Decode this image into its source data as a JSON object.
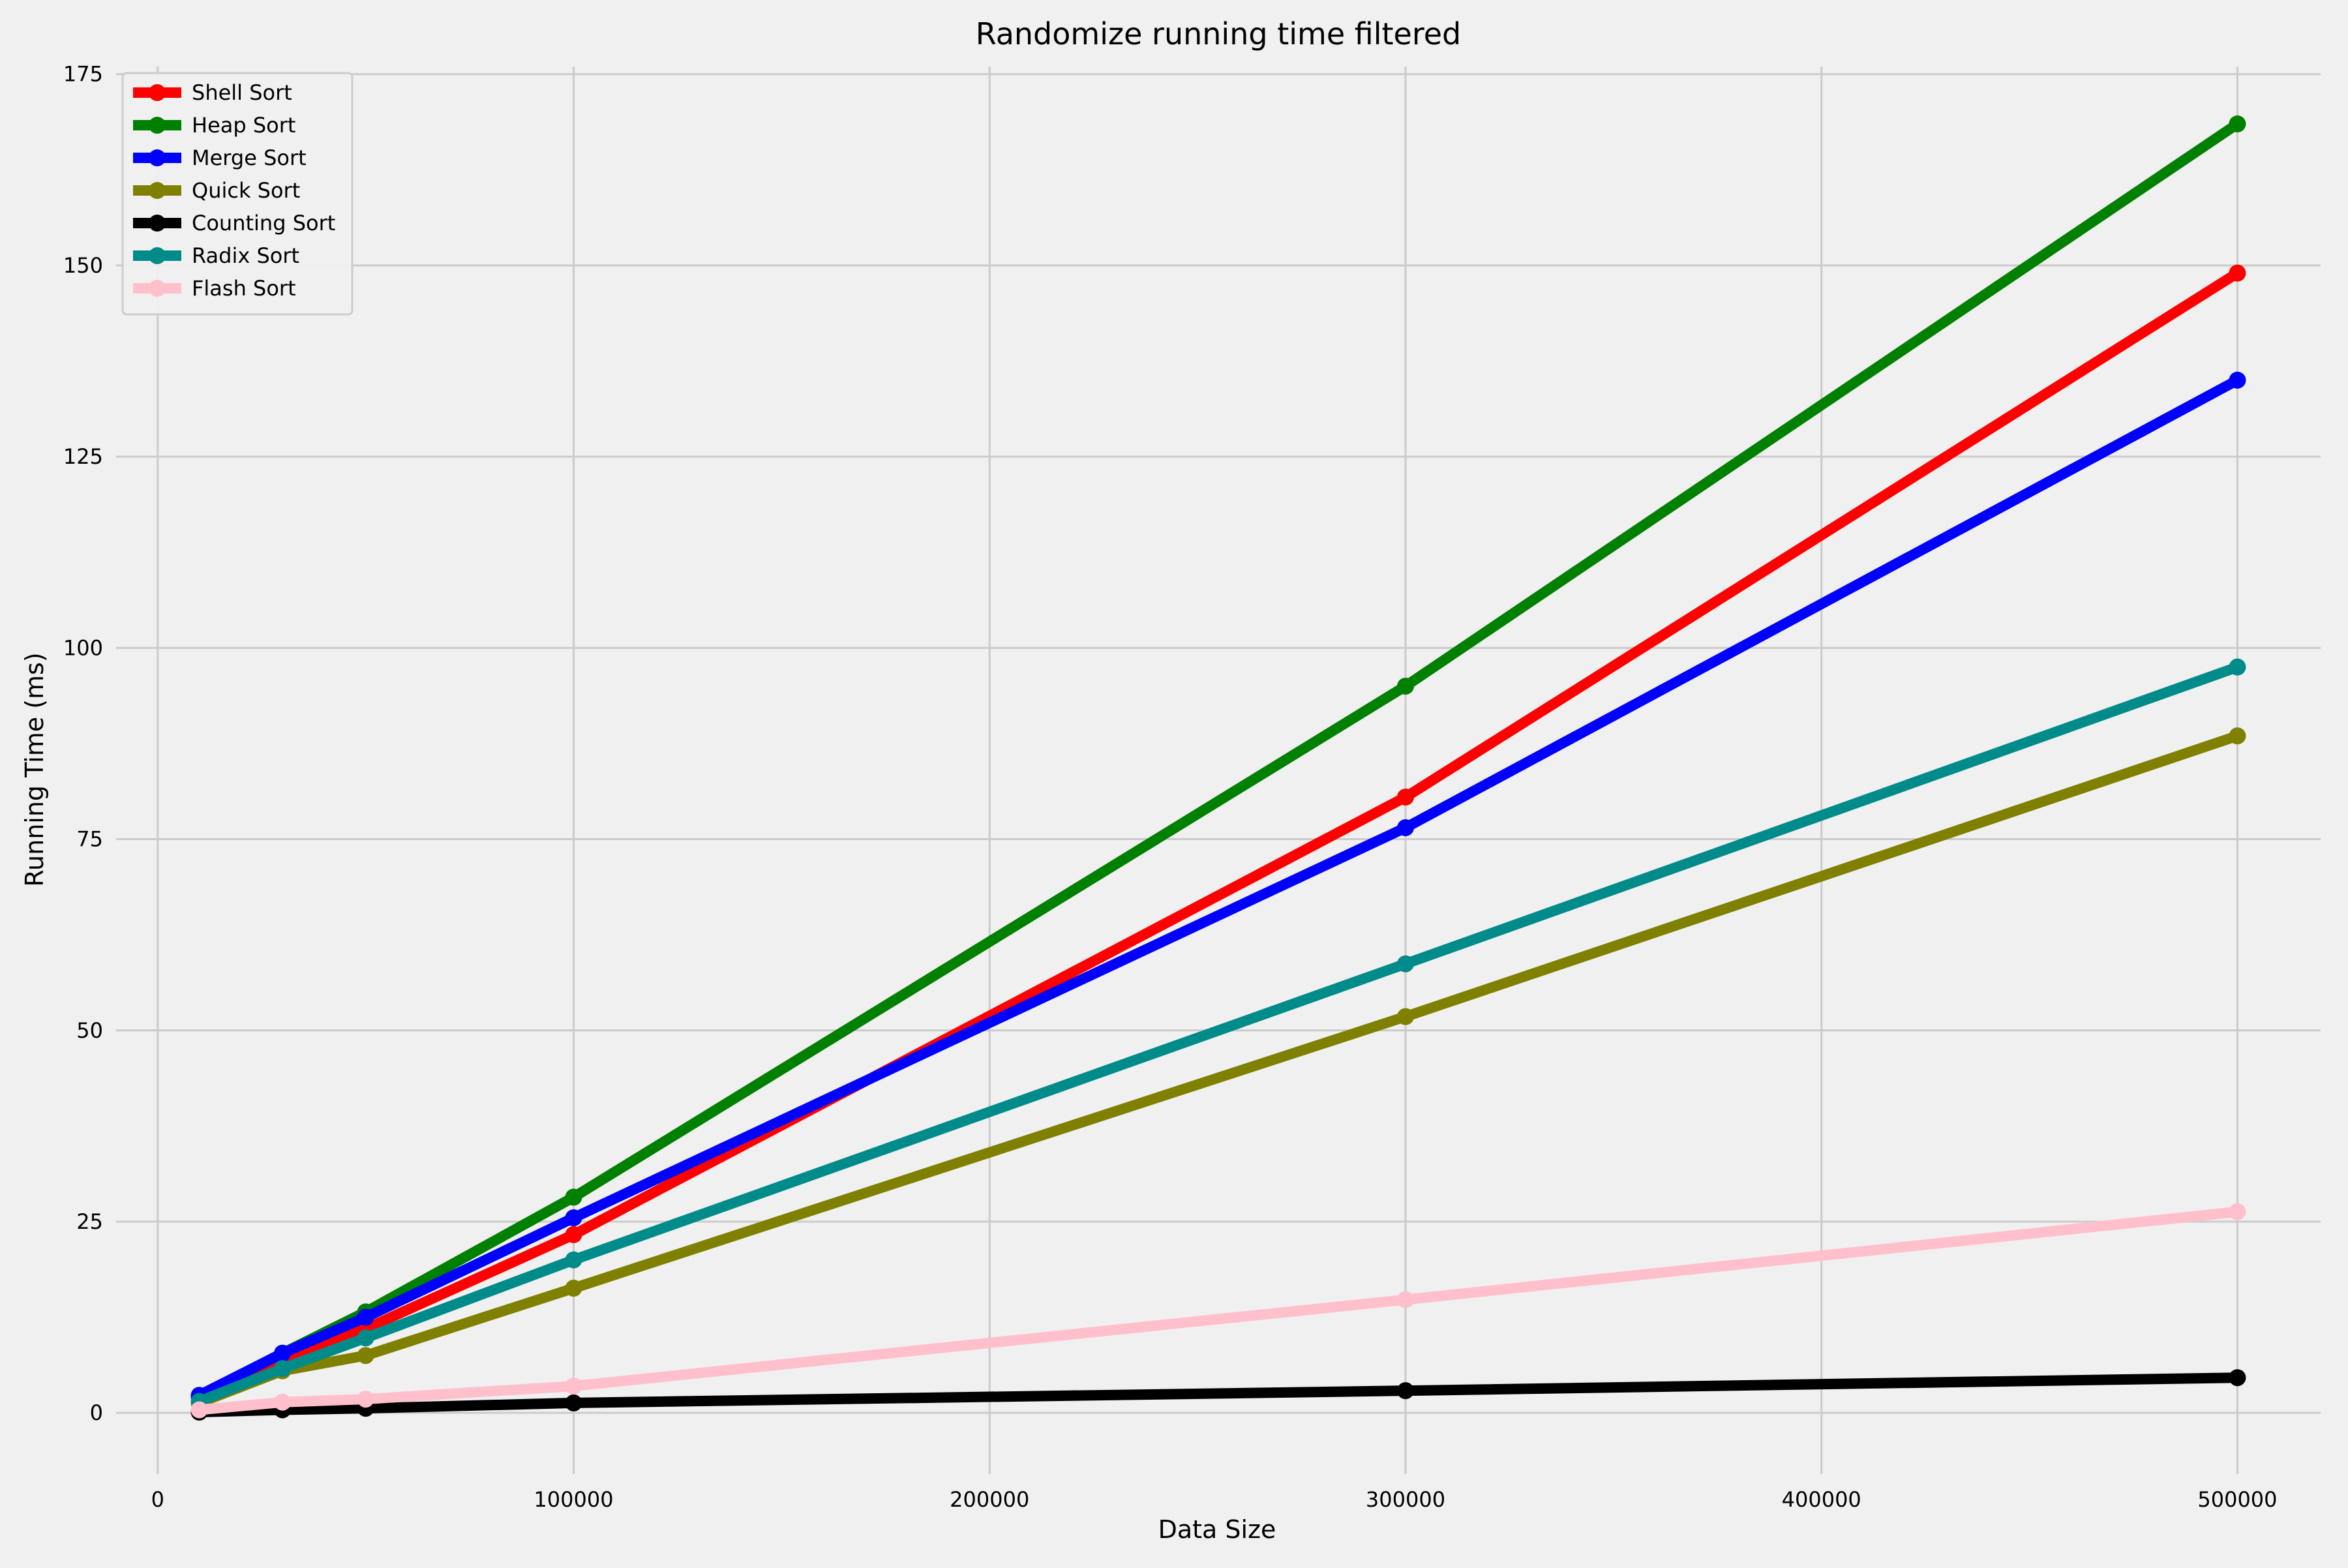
{
  "chart_data": {
    "type": "line",
    "title": "Randomize running time filtered",
    "xlabel": "Data Size",
    "ylabel": "Running Time (ms)",
    "xlim": [
      -10000,
      520000
    ],
    "ylim": [
      -8,
      176
    ],
    "xticks": [
      0,
      100000,
      200000,
      300000,
      400000,
      500000
    ],
    "yticks": [
      0,
      25,
      50,
      75,
      100,
      125,
      150,
      175
    ],
    "grid": true,
    "legend_position": "top-left",
    "x": [
      10000,
      30000,
      50000,
      100000,
      300000,
      500000
    ],
    "series": [
      {
        "name": "Shell Sort",
        "color": "#ff0000",
        "values": [
          2.0,
          7.0,
          11.0,
          23.3,
          80.5,
          149.0
        ]
      },
      {
        "name": "Heap Sort",
        "color": "#008000",
        "values": [
          2.2,
          7.8,
          13.2,
          28.2,
          95.0,
          168.5
        ]
      },
      {
        "name": "Merge Sort",
        "color": "#0000ff",
        "values": [
          2.3,
          7.8,
          12.5,
          25.5,
          76.5,
          135.0
        ]
      },
      {
        "name": "Quick Sort",
        "color": "#808000",
        "values": [
          1.3,
          5.5,
          7.5,
          16.3,
          51.8,
          88.5
        ]
      },
      {
        "name": "Counting Sort",
        "color": "#000000",
        "values": [
          0.1,
          0.4,
          0.6,
          1.3,
          2.9,
          4.6
        ]
      },
      {
        "name": "Radix Sort",
        "color": "#008b8b",
        "values": [
          1.5,
          5.8,
          9.8,
          20.0,
          58.7,
          97.5
        ]
      },
      {
        "name": "Flash Sort",
        "color": "#ffc0cb",
        "values": [
          0.4,
          1.4,
          1.8,
          3.5,
          14.8,
          26.3
        ]
      }
    ]
  }
}
